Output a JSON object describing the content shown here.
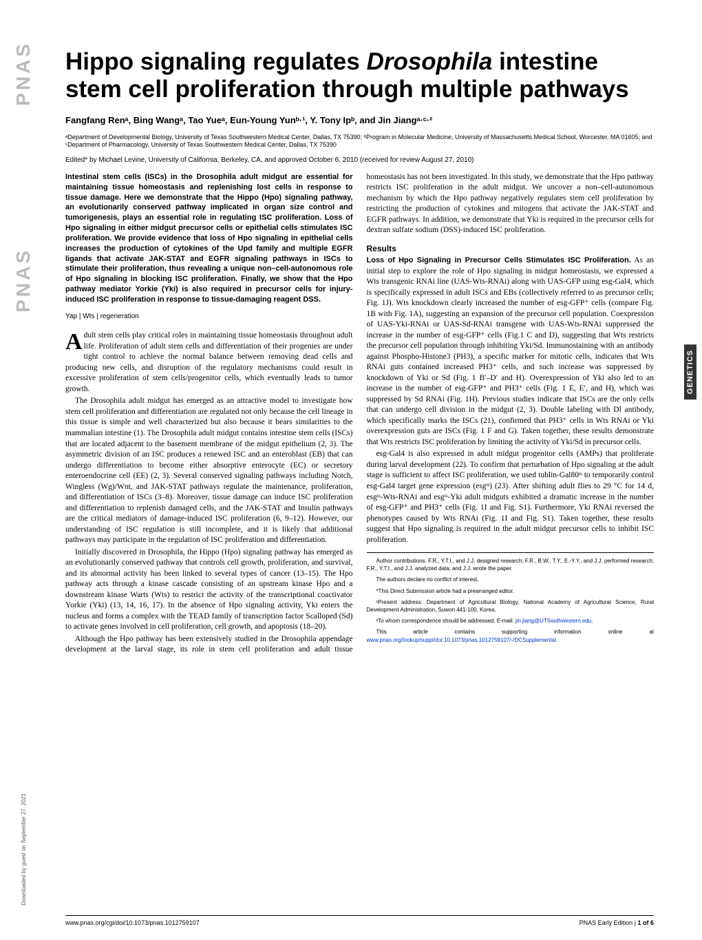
{
  "logo": "PNAS",
  "sidebar": "Downloaded by guest on September 27, 2021",
  "tag": "GENETICS",
  "title_a": "Hippo signaling regulates ",
  "title_b": "Drosophila",
  "title_c": " intestine stem cell proliferation through multiple pathways",
  "authors": "Fangfang Renᵃ, Bing Wangᵃ, Tao Yueᵃ, Eun-Young Yunᵇ·¹, Y. Tony Ipᵇ, and Jin Jiangᵃ·ᶜ·²",
  "affiliations": "ᵃDepartment of Developmental Biology, University of Texas Southwestern Medical Center, Dallas, TX 75390; ᵇProgram in Molecular Medicine, University of Massachusetts Medical School, Worcester, MA 01605; and ᶜDepartment of Pharmacology, University of Texas Southwestern Medical Center, Dallas, TX 75390",
  "edited": "Edited* by Michael Levine, University of California, Berkeley, CA, and approved October 6, 2010 (received for review August 27, 2010)",
  "abstract": "Intestinal stem cells (ISCs) in the Drosophila adult midgut are essential for maintaining tissue homeostasis and replenishing lost cells in response to tissue damage. Here we demonstrate that the Hippo (Hpo) signaling pathway, an evolutionarily conserved pathway implicated in organ size control and tumorigenesis, plays an essential role in regulating ISC proliferation. Loss of Hpo signaling in either midgut precursor cells or epithelial cells stimulates ISC proliferation. We provide evidence that loss of Hpo signaling in epithelial cells increases the production of cytokines of the Upd family and multiple EGFR ligands that activate JAK-STAT and EGFR signaling pathways in ISCs to stimulate their proliferation, thus revealing a unique non–cell-autonomous role of Hpo signaling in blocking ISC proliferation. Finally, we show that the Hpo pathway mediator Yorkie (Yki) is also required in precursor cells for injury-induced ISC proliferation in response to tissue-damaging reagent DSS.",
  "keywords": "Yap | Wts | regeneration",
  "p1a": "dult stem cells play critical roles in maintaining tissue homeostasis throughout adult life. Proliferation of adult stem cells and differentiation of their progenies are under tight control to achieve the normal balance between removing dead cells and producing new cells, and disruption of the regulatory mechanisms could result in excessive proliferation of stem cells/progenitor cells, which eventually leads to tumor growth.",
  "p2": "The Drosophila adult midgut has emerged as an attractive model to investigate how stem cell proliferation and differentiation are regulated not only because the cell lineage in this tissue is simple and well characterized but also because it bears similarities to the mammalian intestine (1). The Drosophila adult midgut contains intestine stem cells (ISCs) that are located adjacent to the basement membrane of the midgut epithelium (2, 3). The asymmetric division of an ISC produces a renewed ISC and an enteroblast (EB) that can undergo differentiation to become either absorptive enterocyte (EC) or secretory enteroendocrine cell (EE) (2, 3). Several conserved signaling pathways including Notch, Wingless (Wg)/Wnt, and JAK-STAT pathways regulate the maintenance, proliferation, and differentiation of ISCs (3–8). Moreover, tissue damage can induce ISC proliferation and differentiation to replenish damaged cells, and the JAK-STAT and Insulin pathways are the critical mediators of damage-induced ISC proliferation (6, 9–12). However, our understanding of ISC regulation is still incomplete, and it is likely that additional pathways may participate in the regulation of ISC proliferation and differentiation.",
  "p3": "Initially discovered in Drosophila, the Hippo (Hpo) signaling pathway has emerged as an evolutionarily conserved pathway that controls cell growth, proliferation, and survival, and its abnormal activity has been linked to several types of cancer (13–15). The Hpo pathway acts through a kinase cascade consisting of an upstream kinase Hpo and a downstream kinase Warts (Wts) to restrict the activity of the transcriptional coactivator Yorkie (Yki) (13, 14, 16, 17). In the absence of Hpo signaling activity, Yki enters the nucleus and forms a complex with the TEAD family of transcription factor Scalloped (Sd) to activate genes involved in cell proliferation, cell growth, and apoptosis (18–20).",
  "p4": "Although the Hpo pathway has been extensively studied in the Drosophila appendage development at the larval stage, its role in stem cell proliferation and adult tissue homeostasis has not been investigated. In this study, we demonstrate that the Hpo pathway restricts ISC proliferation in the adult midgut. We uncover a non–cell-autonomous mechanism by which the Hpo pathway negatively regulates stem cell proliferation by restricting the production of cytokines and mitogens that activate the JAK-STAT and EGFR pathways. In addition, we demonstrate that Yki is required in the precursor cells for dextran sulfate sodium (DSS)-induced ISC proliferation.",
  "results_heading": "Results",
  "sub1": "Loss of Hpo Signaling in Precursor Cells Stimulates ISC Proliferation.",
  "r1": " As an initial step to explore the role of Hpo signaling in midgut homeostasis, we expressed a Wts transgenic RNAi line (UAS-Wts-RNAi) along with UAS-GFP using esg-Gal4, which is specifically expressed in adult ISCs and EBs (collectively referred to as precursor cells; Fig. 1J). Wts knockdown clearly increased the number of esg-GFP⁺ cells (compare Fig. 1B with Fig. 1A), suggesting an expansion of the precursor cell population. Coexpression of UAS-Yki-RNAi or UAS-Sd-RNAi transgene with UAS-Wts-RNAi suppressed the increase in the number of esg-GFP⁺ cells (Fig.1 C and D), suggesting that Wts restricts the precursor cell population through inhibiting Yki/Sd. Immunostaining with an antibody against Phospho-Histone3 (PH3), a specific marker for mitotic cells, indicates that Wts RNAi guts contained increased PH3⁺ cells, and such increase was suppressed by knockdown of Yki or Sd (Fig. 1 B′–D′ and H). Overexpression of Yki also led to an increase in the number of esg-GFP⁺ and PH3⁺ cells (Fig. 1 E, E′, and H), which was suppressed by Sd RNAi (Fig. 1H). Previous studies indicate that ISCs are the only cells that can undergo cell division in the midgut (2, 3). Double labeling with Dl antibody, which specifically marks the ISCs (21), confirmed that PH3⁺ cells in Wts RNAi or Yki overexpression guts are ISCs (Fig. 1 F and G). Taken together, these results demonstrate that Wts restricts ISC proliferation by limiting the activity of Yki/Sd in precursor cells.",
  "r2": "esg-Gal4 is also expressed in adult midgut progenitor cells (AMPs) that proliferate during larval development (22). To confirm that perturbation of Hpo signaling at the adult stage is sufficient to affect ISC proliferation, we used tublin-Gal80ᵗˢ to temporarily control esg-Gal4 target gene expression (esgᵗˢ) (23). After shifting adult flies to 29 °C for 14 d, esgᵗˢ-Wts-RNAi and esgᵗˢ-Yki adult midguts exhibited a dramatic increase in the number of esg-GFP⁺ and PH3⁺ cells (Fig. 1I and Fig. S1). Furthermore, Yki RNAi reversed the phenotypes caused by Wts RNAi (Fig. 1I and Fig. S1). Taken together, these results suggest that Hpo signaling is required in the adult midgut precursor cells to inhibit ISC proliferation.",
  "fn1": "Author contributions: F.R., Y.T.I., and J.J. designed research; F.R., B.W., T.Y., E.-Y.Y., and J.J. performed research; F.R., Y.T.I., and J.J. analyzed data; and J.J. wrote the paper.",
  "fn2": "The authors declare no conflict of interest.",
  "fn3": "*This Direct Submission article had a prearranged editor.",
  "fn4": "¹Present address: Department of Agricultural Biology, National Academy of Agricultural Science, Rural Development Administration, Suwon 441-100, Korea.",
  "fn5a": "²To whom correspondence should be addressed. E-mail: ",
  "fn5b": "jin.jiang@UTSouthwestern.edu",
  "fn5c": ".",
  "fn6a": "This article contains supporting information online at ",
  "fn6b": "www.pnas.org/lookup/suppl/doi:10.1073/pnas.1012759107/-/DCSupplemental",
  "fn6c": ".",
  "footer_left": "www.pnas.org/cgi/doi/10.1073/pnas.1012759107",
  "footer_right_a": "PNAS Early Edition | ",
  "footer_right_b": "1 of 6"
}
